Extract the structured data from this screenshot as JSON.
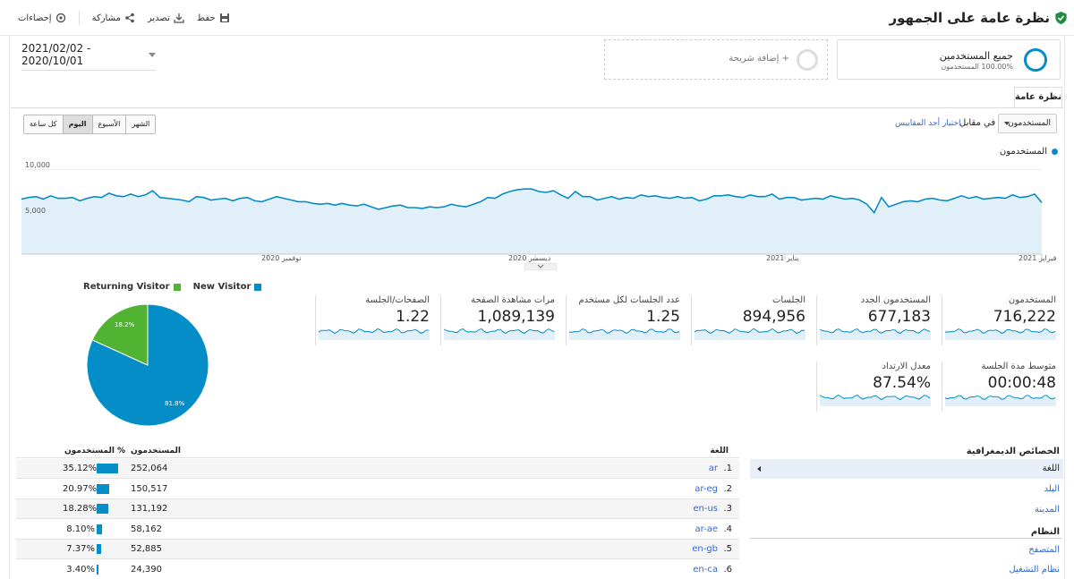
{
  "header": {
    "title": "نظرة عامة على الجمهور",
    "actions": {
      "save": "حفظ",
      "export": "تصدير",
      "share": "مشاركة",
      "insights": "إحصاءات"
    }
  },
  "segments": {
    "active_name": "جميع المستخدمين",
    "active_pct": "100.00% المستخدمون",
    "add_label": "+ إضافة شريحة"
  },
  "date_range": "2021/02/02 - 2020/10/01",
  "tabs": {
    "overview": "نظرة عامة"
  },
  "chart_controls": {
    "metric": "المستخدمون",
    "vs": "في مقابل",
    "pick_metric": "اختيار أحد المقاييس",
    "periods": [
      "كل ساعة",
      "اليوم",
      "الأسبوع",
      "الشهر"
    ],
    "active_period": "اليوم",
    "legend": "المستخدمون"
  },
  "chart_data": {
    "type": "area",
    "title": "",
    "series": [
      {
        "name": "المستخدمون",
        "values": [
          6500,
          6700,
          6800,
          6500,
          6900,
          6600,
          6600,
          6700,
          6300,
          6600,
          6800,
          6700,
          7200,
          6900,
          6800,
          7100,
          6800,
          7000,
          7500,
          6700,
          6600,
          6500,
          6400,
          6200,
          6800,
          6700,
          6400,
          6500,
          6600,
          6300,
          6600,
          6700,
          6300,
          6200,
          6500,
          6800,
          6600,
          6400,
          6200,
          6200,
          6000,
          5900,
          6000,
          5800,
          6000,
          5800,
          5700,
          5900,
          5600,
          5300,
          5500,
          5700,
          5800,
          5500,
          5500,
          5400,
          5600,
          5500,
          5600,
          5900,
          5700,
          5600,
          5900,
          6200,
          6700,
          6600,
          7100,
          7400,
          7600,
          7700,
          7700,
          7400,
          7300,
          7500,
          7000,
          6600,
          7400,
          6800,
          6800,
          6400,
          6600,
          6800,
          6500,
          6700,
          6600,
          7000,
          6800,
          6900,
          6700,
          6600,
          6800,
          6600,
          6700,
          6300,
          6500,
          6900,
          6900,
          7000,
          6800,
          6700,
          7000,
          6800,
          6800,
          7100,
          6500,
          6700,
          6700,
          6400,
          6500,
          6600,
          6500,
          6900,
          6700,
          6500,
          6600,
          6400,
          5900,
          4900,
          6700,
          5600,
          5900,
          6200,
          6300,
          6200,
          6500,
          6600,
          6400,
          6300,
          6600,
          6900,
          6600,
          6800,
          6500,
          6600,
          6700,
          6600,
          7000,
          6700,
          6800,
          7100,
          6100
        ],
        "color": "#058dc7"
      }
    ],
    "ylim": [
      0,
      11000
    ],
    "y_ticks": [
      "10,000",
      "5,000"
    ],
    "x_ticks": [
      "نوفمبر 2020",
      "ديسمبر 2020",
      "يناير 2021",
      "فبراير 2021"
    ]
  },
  "pie": {
    "legend": {
      "new": "New Visitor",
      "returning": "Returning Visitor"
    },
    "new_pct": 81.8,
    "returning_pct": 18.2,
    "new_label": "81.8%",
    "returning_label": "18.2%",
    "colors": {
      "new": "#058dc7",
      "returning": "#50b432"
    }
  },
  "scorecards": [
    {
      "label": "المستخدمون",
      "value": "716,222"
    },
    {
      "label": "المستخدمون الجدد",
      "value": "677,183"
    },
    {
      "label": "الجلسات",
      "value": "894,956"
    },
    {
      "label": "عدد الجلسات لكل مستخدم",
      "value": "1.25"
    },
    {
      "label": "مرات مشاهدة الصفحة",
      "value": "1,089,139"
    },
    {
      "label": "الصفحات/الجلسة",
      "value": "1.22"
    },
    {
      "label": "متوسط مدة الجلسة",
      "value": "00:00:48"
    },
    {
      "label": "معدل الارتداد",
      "value": "87.54%"
    }
  ],
  "demographics": {
    "title": "الخصائص الديمغرافية",
    "items": [
      "اللغة",
      "البلد",
      "المدينة"
    ],
    "system_title": "النظام",
    "system_items": [
      "المتصفح",
      "نظام التشغيل"
    ]
  },
  "table": {
    "headers": {
      "language": "اللغة",
      "users": "المستخدمون",
      "pct": "% المستخدمون"
    },
    "rows": [
      {
        "idx": "1.",
        "lang": "ar",
        "users": "252,064",
        "pct": "35.12%",
        "share": 35.12
      },
      {
        "idx": "2.",
        "lang": "ar-eg",
        "users": "150,517",
        "pct": "20.97%",
        "share": 20.97
      },
      {
        "idx": "3.",
        "lang": "en-us",
        "users": "131,192",
        "pct": "18.28%",
        "share": 18.28
      },
      {
        "idx": "4.",
        "lang": "ar-ae",
        "users": "58,162",
        "pct": "8.10%",
        "share": 8.1
      },
      {
        "idx": "5.",
        "lang": "en-gb",
        "users": "52,885",
        "pct": "7.37%",
        "share": 7.37
      },
      {
        "idx": "6.",
        "lang": "en-ca",
        "users": "24,390",
        "pct": "3.40%",
        "share": 3.4
      }
    ]
  }
}
